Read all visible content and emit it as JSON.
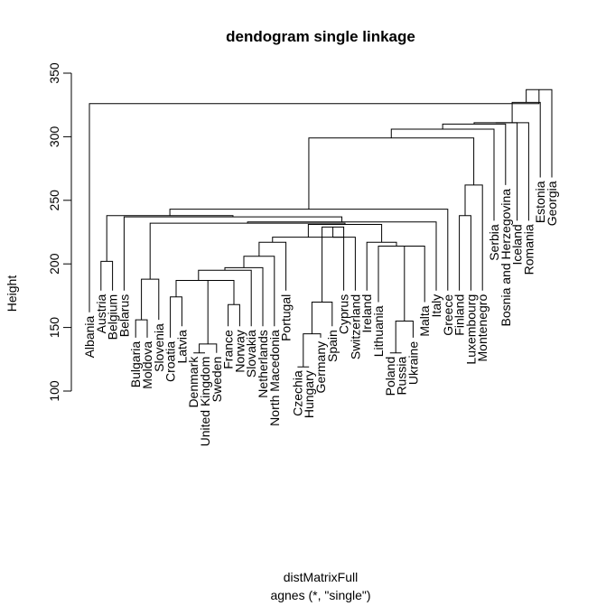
{
  "chart_data": {
    "type": "dendrogram",
    "title": "dendogram single linkage",
    "ylabel": "Height",
    "xlabel": "distMatrixFull",
    "subtitle": "agnes (*, \"single\")",
    "ylim": [
      100,
      350
    ],
    "yticks": [
      100,
      150,
      200,
      250,
      300,
      350
    ],
    "leaves": [
      "Albania",
      "Austria",
      "Belgium",
      "Belarus",
      "Bulgaria",
      "Moldova",
      "Slovenia",
      "Croatia",
      "Latvia",
      "Denmark",
      "United Kingdom",
      "Sweden",
      "France",
      "Norway",
      "Slovakia",
      "Netherlands",
      "North Macedonia",
      "Portugal",
      "Czechia",
      "Hungary",
      "Germany",
      "Spain",
      "Cyprus",
      "Switzerland",
      "Ireland",
      "Lithuania",
      "Poland",
      "Russia",
      "Ukraine",
      "Malta",
      "Italy",
      "Greece",
      "Finland",
      "Luxembourg",
      "Montenegro",
      "Serbia",
      "Bosnia and Herzegovina",
      "Iceland",
      "Romania",
      "Estonia",
      "Georgia"
    ],
    "merges": [
      {
        "id": "m1",
        "left": "Austria",
        "right": "Belgium",
        "height": 202
      },
      {
        "id": "m2",
        "left": "Bulgaria",
        "right": "Moldova",
        "height": 156
      },
      {
        "id": "m3",
        "left": "m2",
        "right": "Slovenia",
        "height": 188
      },
      {
        "id": "m4",
        "left": "Croatia",
        "right": "Latvia",
        "height": 174
      },
      {
        "id": "m5",
        "left": "Denmark",
        "right": "United Kingdom",
        "height": 130
      },
      {
        "id": "m6",
        "left": "m5",
        "right": "Sweden",
        "height": 137
      },
      {
        "id": "m7",
        "left": "France",
        "right": "Norway",
        "height": 168
      },
      {
        "id": "m8",
        "left": "m6",
        "right": "m7",
        "height": 187
      },
      {
        "id": "m9",
        "left": "m4",
        "right": "m8",
        "height": 187
      },
      {
        "id": "m10",
        "left": "m9",
        "right": "Slovakia",
        "height": 195
      },
      {
        "id": "m11",
        "left": "m10",
        "right": "Netherlands",
        "height": 197
      },
      {
        "id": "m12",
        "left": "m11",
        "right": "North Macedonia",
        "height": 206
      },
      {
        "id": "m13",
        "left": "m12",
        "right": "Portugal",
        "height": 217
      },
      {
        "id": "m14",
        "left": "Czechia",
        "right": "Hungary",
        "height": 119
      },
      {
        "id": "m15",
        "left": "m14",
        "right": "Germany",
        "height": 145
      },
      {
        "id": "m16",
        "left": "m15",
        "right": "Spain",
        "height": 170
      },
      {
        "id": "m17",
        "left": "m16",
        "right": "Cyprus",
        "height": 229
      },
      {
        "id": "m18",
        "left": "m17",
        "right": "Switzerland",
        "height": 221
      },
      {
        "id": "m19",
        "left": "m13",
        "right": "m18",
        "height": 221
      },
      {
        "id": "m20",
        "left": "Poland",
        "right": "Russia",
        "height": 130
      },
      {
        "id": "m21",
        "left": "m20",
        "right": "Ukraine",
        "height": 155
      },
      {
        "id": "m22",
        "left": "m21",
        "right": "Malta",
        "height": 214
      },
      {
        "id": "m23",
        "left": "Lithuania",
        "right": "m22",
        "height": 214
      },
      {
        "id": "m24",
        "left": "Ireland",
        "right": "m23",
        "height": 217
      },
      {
        "id": "m25",
        "left": "m19",
        "right": "m24",
        "height": 231
      },
      {
        "id": "m26",
        "left": "m3",
        "right": "m25",
        "height": 232
      },
      {
        "id": "m27",
        "left": "m26",
        "right": "Italy",
        "height": 233
      },
      {
        "id": "m28",
        "left": "Belarus",
        "right": "m27",
        "height": 237
      },
      {
        "id": "m29",
        "left": "m1",
        "right": "m28",
        "height": 238
      },
      {
        "id": "m30",
        "left": "m29",
        "right": "Greece",
        "height": 243
      },
      {
        "id": "m31",
        "left": "Finland",
        "right": "Luxembourg",
        "height": 238
      },
      {
        "id": "m32",
        "left": "m31",
        "right": "Montenegro",
        "height": 262
      },
      {
        "id": "m33",
        "left": "m30",
        "right": "m32",
        "height": 299
      },
      {
        "id": "m34",
        "left": "m33",
        "right": "Serbia",
        "height": 306
      },
      {
        "id": "m35",
        "left": "m34",
        "right": "Bosnia and Herzegovina",
        "height": 310
      },
      {
        "id": "m36",
        "left": "m35",
        "right": "Iceland",
        "height": 311
      },
      {
        "id": "m37",
        "left": "m36",
        "right": "Romania",
        "height": 311
      },
      {
        "id": "m38",
        "left": "m37",
        "right": "Estonia",
        "height": 327
      },
      {
        "id": "m39",
        "left": "m38",
        "right": "Georgia",
        "height": 337
      },
      {
        "id": "m40",
        "left": "Albania",
        "right": "m39",
        "height": 326
      }
    ]
  }
}
